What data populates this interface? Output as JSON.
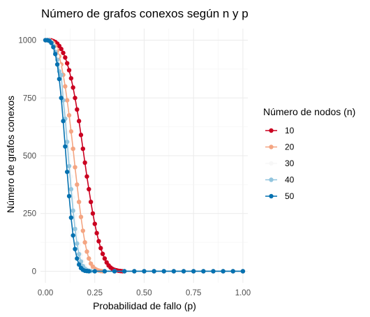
{
  "chart_data": {
    "type": "line",
    "title": "Número de grafos conexos según n y p",
    "xlabel": "Probabilidad de fallo (p)",
    "ylabel": "Número de grafos conexos",
    "xlim": [
      -0.025,
      1.025
    ],
    "ylim": [
      -50,
      1050
    ],
    "x_ticks": [
      0,
      0.25,
      0.5,
      0.75,
      1
    ],
    "x_tick_labels": [
      "0.00",
      "0.25",
      "0.50",
      "0.75",
      "1.00"
    ],
    "y_ticks": [
      0,
      250,
      500,
      750,
      1000
    ],
    "y_tick_labels": [
      "0",
      "250",
      "500",
      "750",
      "1000"
    ],
    "grid": true,
    "legend": {
      "title": "Número de nodos (n)",
      "position": "right"
    },
    "markers": "circle",
    "series": [
      {
        "name": "10",
        "color": "#ca0020",
        "x": [
          0,
          0.01,
          0.02,
          0.03,
          0.04,
          0.05,
          0.06,
          0.07,
          0.08,
          0.09,
          0.1,
          0.11,
          0.12,
          0.13,
          0.14,
          0.15,
          0.16,
          0.17,
          0.18,
          0.19,
          0.2,
          0.21,
          0.22,
          0.23,
          0.24,
          0.25,
          0.26,
          0.27,
          0.28,
          0.29,
          0.3,
          0.31,
          0.32,
          0.33,
          0.34,
          0.35,
          0.36,
          0.37,
          0.38,
          0.39,
          0.4,
          0.45,
          0.5,
          0.55,
          0.6,
          0.65,
          0.7,
          0.75,
          0.8,
          0.85,
          0.9,
          0.95,
          1
        ],
        "values": [
          1000,
          1000,
          1000,
          999,
          996,
          992,
          985,
          975,
          962,
          945,
          925,
          900,
          870,
          835,
          795,
          750,
          700,
          650,
          590,
          530,
          470,
          410,
          355,
          300,
          250,
          205,
          165,
          130,
          100,
          75,
          55,
          38,
          25,
          16,
          10,
          6,
          4,
          2,
          1,
          0,
          0,
          0,
          0,
          0,
          0,
          0,
          0,
          0,
          0,
          0,
          0,
          0,
          0
        ]
      },
      {
        "name": "20",
        "color": "#f4a582",
        "x": [
          0,
          0.01,
          0.02,
          0.03,
          0.04,
          0.05,
          0.06,
          0.07,
          0.08,
          0.09,
          0.1,
          0.11,
          0.12,
          0.13,
          0.14,
          0.15,
          0.16,
          0.17,
          0.18,
          0.19,
          0.2,
          0.21,
          0.22,
          0.23,
          0.24,
          0.25,
          0.26,
          0.27,
          0.28,
          0.29,
          0.3,
          0.35,
          0.4,
          0.45,
          0.5,
          0.55,
          0.6,
          0.65,
          0.7,
          0.75,
          0.8,
          0.85,
          0.9,
          0.95,
          1
        ],
        "values": [
          1000,
          1000,
          999,
          995,
          988,
          975,
          955,
          930,
          895,
          850,
          800,
          740,
          675,
          605,
          530,
          450,
          375,
          300,
          235,
          175,
          125,
          85,
          55,
          33,
          20,
          11,
          6,
          3,
          1,
          0,
          0,
          0,
          0,
          0,
          0,
          0,
          0,
          0,
          0,
          0,
          0,
          0,
          0,
          0,
          0
        ]
      },
      {
        "name": "30",
        "color": "#f7f7f7",
        "x": [
          0,
          0.01,
          0.02,
          0.03,
          0.04,
          0.05,
          0.06,
          0.07,
          0.08,
          0.09,
          0.1,
          0.11,
          0.12,
          0.13,
          0.14,
          0.15,
          0.16,
          0.17,
          0.18,
          0.19,
          0.2,
          0.21,
          0.22,
          0.23,
          0.24,
          0.25,
          0.3,
          0.35,
          0.4,
          0.45,
          0.5,
          0.55,
          0.6,
          0.65,
          0.7,
          0.75,
          0.8,
          0.85,
          0.9,
          0.95,
          1
        ],
        "values": [
          1000,
          1000,
          998,
          992,
          980,
          960,
          930,
          890,
          835,
          770,
          690,
          600,
          505,
          410,
          320,
          240,
          170,
          115,
          72,
          42,
          23,
          12,
          5,
          2,
          1,
          0,
          0,
          0,
          0,
          0,
          0,
          0,
          0,
          0,
          0,
          0,
          0,
          0,
          0,
          0,
          0
        ]
      },
      {
        "name": "40",
        "color": "#92c5de",
        "x": [
          0,
          0.01,
          0.02,
          0.03,
          0.04,
          0.05,
          0.06,
          0.07,
          0.08,
          0.09,
          0.1,
          0.11,
          0.12,
          0.13,
          0.14,
          0.15,
          0.16,
          0.17,
          0.18,
          0.19,
          0.2,
          0.21,
          0.22,
          0.23,
          0.25,
          0.3,
          0.35,
          0.4,
          0.45,
          0.5,
          0.55,
          0.6,
          0.65,
          0.7,
          0.75,
          0.8,
          0.85,
          0.9,
          0.95,
          1
        ],
        "values": [
          1000,
          1000,
          998,
          990,
          975,
          950,
          915,
          865,
          850,
          740,
          660,
          560,
          455,
          355,
          262,
          183,
          120,
          74,
          42,
          22,
          11,
          5,
          2,
          1,
          0,
          0,
          0,
          0,
          0,
          0,
          0,
          0,
          0,
          0,
          0,
          0,
          0,
          0,
          0,
          0
        ]
      },
      {
        "name": "50",
        "color": "#0571b0",
        "x": [
          0,
          0.01,
          0.02,
          0.03,
          0.04,
          0.05,
          0.06,
          0.07,
          0.08,
          0.09,
          0.1,
          0.11,
          0.12,
          0.13,
          0.14,
          0.15,
          0.16,
          0.17,
          0.18,
          0.19,
          0.2,
          0.21,
          0.22,
          0.25,
          0.3,
          0.35,
          0.4,
          0.45,
          0.5,
          0.55,
          0.6,
          0.65,
          0.7,
          0.75,
          0.8,
          0.85,
          0.9,
          0.95,
          1
        ],
        "values": [
          1000,
          1000,
          997,
          988,
          970,
          940,
          895,
          832,
          750,
          650,
          540,
          430,
          325,
          232,
          155,
          96,
          55,
          29,
          14,
          6,
          2,
          1,
          0,
          0,
          0,
          0,
          0,
          0,
          0,
          0,
          0,
          0,
          0,
          0,
          0,
          0,
          0,
          0,
          0
        ]
      }
    ]
  }
}
